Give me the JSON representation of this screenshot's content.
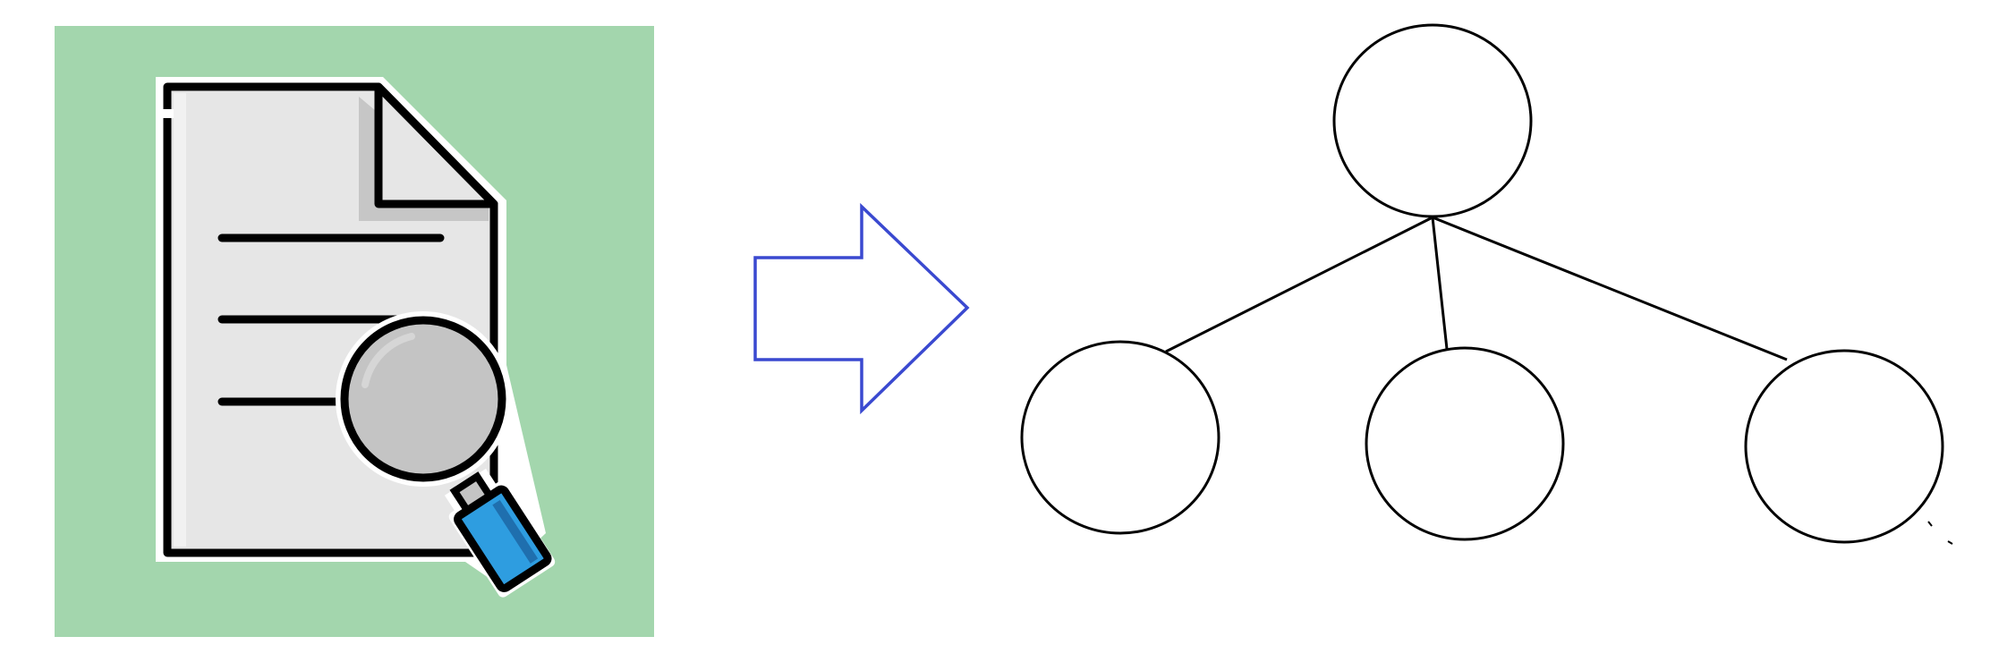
{
  "colors": {
    "icon_background": "#a3d6ad",
    "document_fill": "#e6e6e6",
    "document_fold_shadow": "#c6c6c6",
    "outline": "#000000",
    "lens_fill": "#c4c4c4",
    "handle_fill": "#2e9de0",
    "arrow_stroke": "#3a49d0",
    "tree_stroke": "#000000"
  },
  "icons": {
    "document": "document-search-icon",
    "arrow": "right-arrow-icon",
    "tree": "tree-diagram-icon"
  },
  "tree": {
    "root_count": 1,
    "child_count": 3
  }
}
